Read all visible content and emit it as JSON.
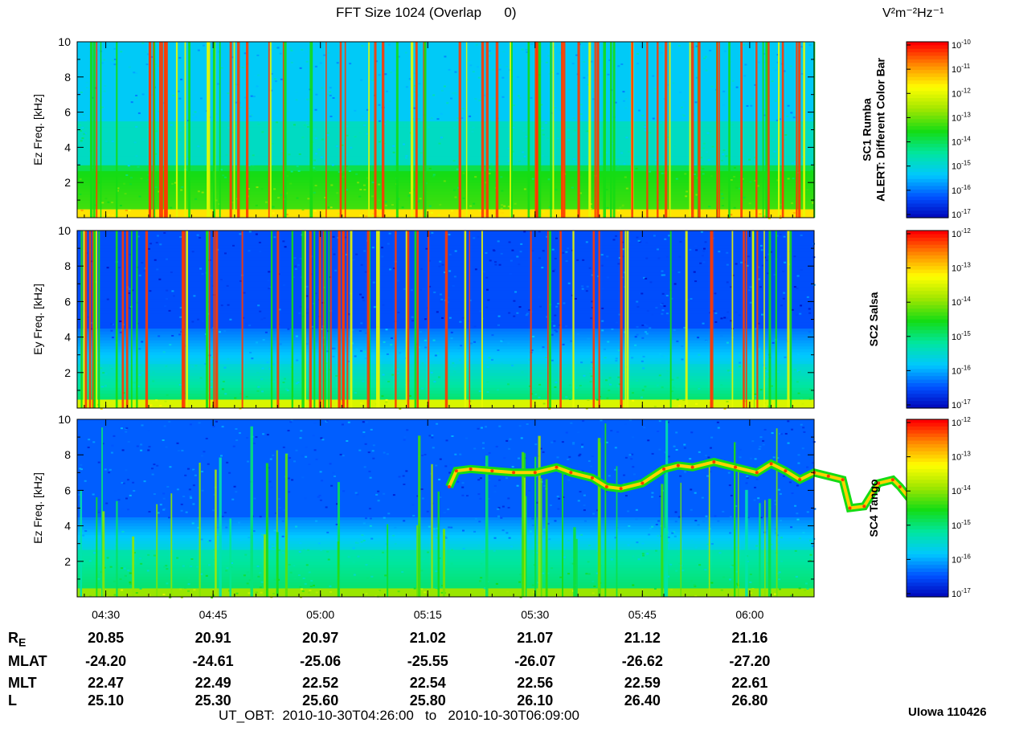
{
  "header": {
    "title": "FFT Size 1024 (Overlap      0)",
    "colorbar_units": "V²m⁻²Hz⁻¹"
  },
  "chart_data": [
    {
      "type": "heatmap",
      "panel": "SC1",
      "ylabel": "Ez Freq. [kHz]",
      "yticks": [
        2,
        4,
        6,
        8,
        10
      ],
      "ylim": [
        0,
        10
      ],
      "xlim": [
        "04:26:00",
        "06:09:00"
      ],
      "colorbar_label": [
        "SC1 Rumba",
        "ALERT: Different Color Bar"
      ],
      "colorbar_ticks": [
        "10-10",
        "10-11",
        "10-12",
        "10-13",
        "10-14",
        "10-15",
        "10-16",
        "10-17"
      ],
      "description_bands": "broadband background ~10^-15 to 10^-14, enhanced band 0-2.5 kHz, frequent vertical bursts"
    },
    {
      "type": "heatmap",
      "panel": "SC2",
      "ylabel": "Ey Freq. [kHz]",
      "yticks": [
        2,
        4,
        6,
        8,
        10
      ],
      "ylim": [
        0,
        10
      ],
      "xlim": [
        "04:26:00",
        "06:09:00"
      ],
      "colorbar_label": [
        "SC2 Salsa"
      ],
      "colorbar_ticks": [
        "10-12",
        "10-13",
        "10-14",
        "10-15",
        "10-16",
        "10-17"
      ]
    },
    {
      "type": "heatmap",
      "panel": "SC4",
      "ylabel": "Ez Freq. [kHz]",
      "yticks": [
        2,
        4,
        6,
        8,
        10
      ],
      "ylim": [
        0,
        10
      ],
      "xlim": [
        "04:26:00",
        "06:09:00"
      ],
      "colorbar_label": [
        "SC4 Tango"
      ],
      "colorbar_ticks": [
        "10-12",
        "10-13",
        "10-14",
        "10-15",
        "10-16",
        "10-17"
      ],
      "emission_trace": {
        "t_min": [
          52,
          53,
          55,
          58,
          61,
          64,
          67,
          69,
          72,
          74,
          76,
          79,
          82,
          84,
          86,
          89,
          92,
          95,
          97,
          99,
          101,
          103,
          105,
          107,
          108,
          110,
          112,
          114,
          115,
          117,
          120
        ],
        "f_khz": [
          6.2,
          7.1,
          7.2,
          7.1,
          7.0,
          7.0,
          7.3,
          7.0,
          6.7,
          6.2,
          6.1,
          6.4,
          7.2,
          7.4,
          7.3,
          7.6,
          7.3,
          7.0,
          7.5,
          7.1,
          6.6,
          7.0,
          6.8,
          6.6,
          5.0,
          5.1,
          6.4,
          6.6,
          6.2,
          5.2,
          5.0
        ]
      }
    }
  ],
  "x_ticks": [
    "04:30",
    "04:45",
    "05:00",
    "05:15",
    "05:30",
    "05:45",
    "06:00"
  ],
  "ephemeris": {
    "rows": [
      {
        "label": "R",
        "sub": "E",
        "values": [
          "20.85",
          "20.91",
          "20.97",
          "21.02",
          "21.07",
          "21.12",
          "21.16"
        ]
      },
      {
        "label": "MLAT",
        "sub": "",
        "values": [
          "-24.20",
          "-24.61",
          "-25.06",
          "-25.55",
          "-26.07",
          "-26.62",
          "-27.20"
        ]
      },
      {
        "label": "MLT",
        "sub": "",
        "values": [
          "22.47",
          "22.49",
          "22.52",
          "22.54",
          "22.56",
          "22.59",
          "22.61"
        ]
      },
      {
        "label": "L",
        "sub": "",
        "values": [
          "25.10",
          "25.30",
          "25.60",
          "25.80",
          "26.10",
          "26.40",
          "26.80"
        ]
      }
    ],
    "time_range": "UT_OBT:  2010-10-30T04:26:00   to   2010-10-30T06:09:00"
  },
  "credit": "UIowa 110426",
  "colors": {
    "colormap": [
      "#0000b4",
      "#0050ff",
      "#00c8ff",
      "#00e6a0",
      "#14dc14",
      "#a0e600",
      "#ffff00",
      "#ff8c00",
      "#ff0000"
    ]
  }
}
